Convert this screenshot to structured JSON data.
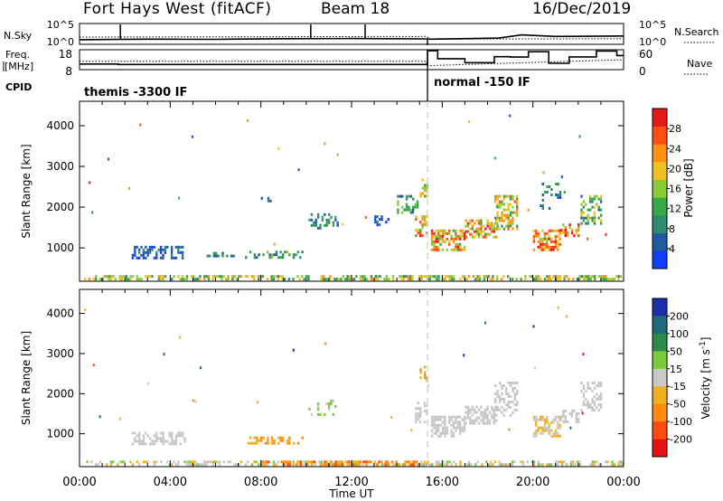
{
  "header": {
    "radar": "Fort Hays West (fitACF)",
    "beam": "Beam 18",
    "date": "16/Dec/2019"
  },
  "colors": {
    "power": [
      "#1040ff",
      "#205aa0",
      "#2e8a6f",
      "#36a848",
      "#88cc33",
      "#f0c020",
      "#ff9010",
      "#ff5010",
      "#e81818"
    ],
    "velocity": [
      "#1c2fa8",
      "#1c6a7a",
      "#2a8a4a",
      "#7acb3a",
      "#c8c8c8",
      "#f0b020",
      "#ff8c10",
      "#ff4a10",
      "#e81010"
    ],
    "velocity_ground": "#bcbcbc"
  },
  "chart_data": [
    {
      "type": "line",
      "id": "noise-panel",
      "ylabel_left": "N.Sky",
      "ylabel_right": "N.Search",
      "left_ticks": [
        "10^5",
        "10^0"
      ],
      "right_ticks": [
        "10^5",
        "10^0"
      ],
      "x_range": [
        0,
        24
      ],
      "series": [
        {
          "style": "solid",
          "points": [
            [
              0,
              0.22
            ],
            [
              3,
              0.25
            ],
            [
              6,
              0.24
            ],
            [
              9,
              0.27
            ],
            [
              12,
              0.28
            ],
            [
              15.3,
              0.26
            ],
            [
              15.5,
              0.25
            ],
            [
              18.5,
              0.3
            ],
            [
              19.5,
              0.45
            ],
            [
              21,
              0.38
            ],
            [
              24,
              0.4
            ]
          ]
        },
        {
          "style": "dotted",
          "points": [
            [
              0,
              0.35
            ],
            [
              15.3,
              0.38
            ],
            [
              15.5,
              0.25
            ],
            [
              24,
              0.27
            ]
          ]
        }
      ],
      "spikes_hours": [
        1.8,
        10.2,
        12.6
      ]
    },
    {
      "type": "line",
      "id": "freq-panel",
      "ylabel_left": "Freq. [MHz]",
      "ylabel_right": "Nave",
      "left_ticks": [
        "18",
        "8"
      ],
      "right_ticks": [
        "60",
        "0"
      ],
      "ylim_left": [
        8,
        18
      ],
      "ylim_right": [
        0,
        60
      ],
      "freq_steps": [
        [
          0,
          10.8
        ],
        [
          1.7,
          10.6
        ],
        [
          15.3,
          10.7
        ],
        [
          15.35,
          17.5
        ],
        [
          15.8,
          13.5
        ],
        [
          17.0,
          11.5
        ],
        [
          18.3,
          14.5
        ],
        [
          19.0,
          14.3
        ],
        [
          19.8,
          17.0
        ],
        [
          20.7,
          11.2
        ],
        [
          21.6,
          14.4
        ],
        [
          22.8,
          17.3
        ],
        [
          23.7,
          15.1
        ],
        [
          24,
          15.1
        ]
      ],
      "nave_dotted": [
        [
          0,
          25
        ],
        [
          15.3,
          25
        ],
        [
          15.35,
          12
        ],
        [
          24,
          30
        ]
      ],
      "cpid_label": "CPID",
      "programs": [
        {
          "name": "themis -3300 IF",
          "start": 0
        },
        {
          "name": "normal -150 IF",
          "start": 15.35
        }
      ]
    },
    {
      "type": "heatmap",
      "id": "power-panel",
      "ylabel": "Slant Range [km]",
      "y_ticks": [
        1000,
        2000,
        3000,
        4000
      ],
      "ylim": [
        180,
        4600
      ],
      "x_range": [
        0,
        24
      ],
      "colorbar_label": "Power [dB]",
      "colorbar_ticks": [
        4,
        8,
        12,
        16,
        20,
        24,
        28
      ],
      "colorbar_range": [
        0,
        32
      ],
      "patches": [
        {
          "t": [
            0.2,
            24
          ],
          "r": [
            200,
            330
          ],
          "level": [
            2,
            6
          ],
          "density": 0.55
        },
        {
          "t": [
            2.3,
            4.6
          ],
          "r": [
            760,
            1050
          ],
          "level": [
            0,
            2
          ],
          "density": 0.45
        },
        {
          "t": [
            5.6,
            6.8
          ],
          "r": [
            820,
            900
          ],
          "level": [
            1,
            3
          ],
          "density": 0.5
        },
        {
          "t": [
            7.3,
            9.8
          ],
          "r": [
            770,
            930
          ],
          "level": [
            1,
            4
          ],
          "density": 0.4
        },
        {
          "t": [
            7.9,
            8.4
          ],
          "r": [
            2150,
            2250
          ],
          "level": [
            0,
            2
          ],
          "density": 0.35
        },
        {
          "t": [
            10.1,
            11.4
          ],
          "r": [
            1500,
            1850
          ],
          "level": [
            1,
            3
          ],
          "density": 0.3
        },
        {
          "t": [
            13.0,
            13.6
          ],
          "r": [
            1550,
            1800
          ],
          "level": [
            0,
            2
          ],
          "density": 0.35
        },
        {
          "t": [
            14.0,
            14.9
          ],
          "r": [
            1900,
            2300
          ],
          "level": [
            1,
            4
          ],
          "density": 0.35
        },
        {
          "t": [
            14.8,
            15.3
          ],
          "r": [
            1300,
            1800
          ],
          "level": [
            2,
            8
          ],
          "density": 0.6
        },
        {
          "t": [
            15.0,
            15.3
          ],
          "r": [
            2300,
            2700
          ],
          "level": [
            3,
            6
          ],
          "density": 0.5
        },
        {
          "t": [
            15.5,
            17.0
          ],
          "r": [
            950,
            1450
          ],
          "level": [
            3,
            8
          ],
          "density": 0.6
        },
        {
          "t": [
            17.0,
            18.4
          ],
          "r": [
            1250,
            1700
          ],
          "level": [
            3,
            8
          ],
          "density": 0.6
        },
        {
          "t": [
            18.3,
            19.3
          ],
          "r": [
            1450,
            2300
          ],
          "level": [
            2,
            7
          ],
          "density": 0.5
        },
        {
          "t": [
            20.0,
            21.2
          ],
          "r": [
            950,
            1450
          ],
          "level": [
            4,
            8
          ],
          "density": 0.65
        },
        {
          "t": [
            21.2,
            22.0
          ],
          "r": [
            1300,
            1600
          ],
          "level": [
            4,
            8
          ],
          "density": 0.6
        },
        {
          "t": [
            22.1,
            23.0
          ],
          "r": [
            1600,
            2300
          ],
          "level": [
            1,
            5
          ],
          "density": 0.5
        },
        {
          "t": [
            20.3,
            21.4
          ],
          "r": [
            1950,
            2600
          ],
          "level": [
            0,
            3
          ],
          "density": 0.25
        }
      ],
      "dashed_vertical_hour": 15.35
    },
    {
      "type": "heatmap",
      "id": "velocity-panel",
      "ylabel": "Slant Range [km]",
      "y_ticks": [
        1000,
        2000,
        3000,
        4000
      ],
      "ylim": [
        180,
        4600
      ],
      "x_range": [
        0,
        24
      ],
      "colorbar_label": "Velocity [m s-1]",
      "colorbar_ticks": [
        200,
        100,
        50,
        15,
        -15,
        -50,
        -100,
        -200
      ],
      "xlabel": "Time UT",
      "x_tick_labels": [
        "00:00",
        "04:00",
        "08:00",
        "12:00",
        "16:00",
        "20:00",
        "00:00"
      ],
      "patches": [
        {
          "t": [
            0.2,
            24
          ],
          "r": [
            200,
            330
          ],
          "level": [
            3,
            5
          ],
          "density": 0.5
        },
        {
          "t": [
            8.0,
            15.3
          ],
          "r": [
            200,
            330
          ],
          "level": [
            5,
            7
          ],
          "density": 0.5
        },
        {
          "t": [
            2.3,
            4.6
          ],
          "r": [
            760,
            1050
          ],
          "level": [
            4,
            4
          ],
          "density": 0.4
        },
        {
          "t": [
            7.3,
            9.8
          ],
          "r": [
            770,
            930
          ],
          "level": [
            5,
            6
          ],
          "density": 0.45
        },
        {
          "t": [
            15.0,
            15.3
          ],
          "r": [
            2300,
            2700
          ],
          "level": [
            5,
            6
          ],
          "density": 0.5
        },
        {
          "t": [
            14.8,
            15.3
          ],
          "r": [
            1300,
            1800
          ],
          "level": [
            4,
            4
          ],
          "density": 0.5
        },
        {
          "t": [
            15.5,
            17.0
          ],
          "r": [
            950,
            1450
          ],
          "level": [
            4,
            4
          ],
          "density": 0.6
        },
        {
          "t": [
            17.0,
            18.4
          ],
          "r": [
            1250,
            1700
          ],
          "level": [
            4,
            4
          ],
          "density": 0.6
        },
        {
          "t": [
            18.3,
            19.3
          ],
          "r": [
            1450,
            2300
          ],
          "level": [
            4,
            4
          ],
          "density": 0.5
        },
        {
          "t": [
            20.0,
            21.2
          ],
          "r": [
            950,
            1450
          ],
          "level": [
            4,
            5
          ],
          "density": 0.55
        },
        {
          "t": [
            21.2,
            22.0
          ],
          "r": [
            1300,
            1600
          ],
          "level": [
            4,
            4
          ],
          "density": 0.55
        },
        {
          "t": [
            22.1,
            23.0
          ],
          "r": [
            1600,
            2300
          ],
          "level": [
            4,
            4
          ],
          "density": 0.45
        },
        {
          "t": [
            10.1,
            11.4
          ],
          "r": [
            1500,
            1850
          ],
          "level": [
            3,
            4
          ],
          "density": 0.25
        }
      ],
      "dashed_vertical_hour": 15.35
    }
  ]
}
